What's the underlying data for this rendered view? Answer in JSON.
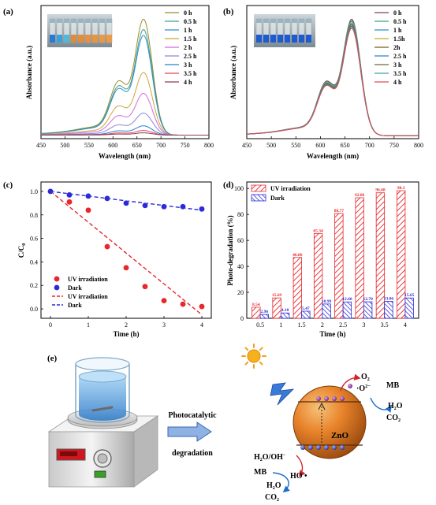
{
  "panels": {
    "a": {
      "label": "(a)"
    },
    "b": {
      "label": "(b)"
    },
    "c": {
      "label": "(c)"
    },
    "d": {
      "label": "(d)"
    },
    "e": {
      "label": "(e)"
    }
  },
  "chart_data": [
    {
      "id": "a",
      "type": "line",
      "xlabel": "Wavelength (nm)",
      "ylabel": "Absorbance (a.u.)",
      "xlim": [
        450,
        800
      ],
      "xticks": [
        "450",
        "500",
        "550",
        "600",
        "650",
        "700",
        "750",
        "800"
      ],
      "legend_position": "top-right",
      "series": [
        {
          "name": "0 h",
          "color": "#a08a2c",
          "peak": 1.0
        },
        {
          "name": "0.5 h",
          "color": "#3aa28c",
          "peak": 0.91
        },
        {
          "name": "1 h",
          "color": "#2f8fcf",
          "peak": 0.86
        },
        {
          "name": "1.5 h",
          "color": "#c9a832",
          "peak": 0.54
        },
        {
          "name": "2 h",
          "color": "#d46ad8",
          "peak": 0.36
        },
        {
          "name": "2.5 h",
          "color": "#8a86d8",
          "peak": 0.19
        },
        {
          "name": "3 h",
          "color": "#2a7fd4",
          "peak": 0.08
        },
        {
          "name": "3.5 h",
          "color": "#e0485c",
          "peak": 0.04
        },
        {
          "name": "4 h",
          "color": "#8e3a4a",
          "peak": 0.02
        }
      ]
    },
    {
      "id": "b",
      "type": "line",
      "xlabel": "Wavelength (nm)",
      "ylabel": "Absorbance (a.u.)",
      "xlim": [
        450,
        800
      ],
      "xticks": [
        "450",
        "500",
        "550",
        "600",
        "650",
        "700",
        "750",
        "800"
      ],
      "legend_position": "top-right",
      "series": [
        {
          "name": "0 h",
          "color": "#8e3a4a",
          "peak": 1.0
        },
        {
          "name": "0.5 h",
          "color": "#3aa28c",
          "peak": 0.99
        },
        {
          "name": "1 h",
          "color": "#2f8fcf",
          "peak": 0.98
        },
        {
          "name": "1.5h",
          "color": "#c9a832",
          "peak": 0.97
        },
        {
          "name": "2h",
          "color": "#7a5a20",
          "peak": 0.96
        },
        {
          "name": "2.5 h",
          "color": "#2a7fd4",
          "peak": 0.95
        },
        {
          "name": "3 h",
          "color": "#6a6a3a",
          "peak": 0.94
        },
        {
          "name": "3.5 h",
          "color": "#3aa8a0",
          "peak": 0.93
        },
        {
          "name": "4 h",
          "color": "#e0485c",
          "peak": 0.92
        }
      ]
    },
    {
      "id": "c",
      "type": "scatter",
      "xlabel": "Time (h)",
      "ylabel": "C/C",
      "ylabel_sub": "0",
      "xlim": [
        -0.25,
        4.25
      ],
      "ylim": [
        -0.08,
        1.08
      ],
      "xticks": [
        "0",
        "1",
        "2",
        "3",
        "4"
      ],
      "yticks": [
        "0.0",
        "0.2",
        "0.4",
        "0.6",
        "0.8",
        "1.0"
      ],
      "legend_position": "bottom-left",
      "series": [
        {
          "name": "UV irradiation",
          "color": "#e8262b",
          "x": [
            0,
            0.5,
            1,
            1.5,
            2,
            2.5,
            3,
            3.5,
            4
          ],
          "y": [
            1.0,
            0.91,
            0.84,
            0.53,
            0.35,
            0.19,
            0.07,
            0.04,
            0.02
          ]
        },
        {
          "name": "Dark",
          "color": "#2a2ad8",
          "x": [
            0,
            0.5,
            1,
            1.5,
            2,
            2.5,
            3,
            3.5,
            4
          ],
          "y": [
            1.0,
            0.97,
            0.96,
            0.94,
            0.9,
            0.88,
            0.87,
            0.87,
            0.85
          ]
        }
      ],
      "fits": [
        {
          "name": "UV irradiation",
          "color": "#e8262b",
          "x": [
            0,
            4
          ],
          "y": [
            1.0,
            -0.05
          ]
        },
        {
          "name": "Dark",
          "color": "#2a2ad8",
          "x": [
            0,
            4
          ],
          "y": [
            1.0,
            0.84
          ]
        }
      ]
    },
    {
      "id": "d",
      "type": "bar",
      "xlabel": "Time (h)",
      "ylabel": "Photo-degradation (%)",
      "ylim": [
        0,
        105
      ],
      "yticks": [
        "0",
        "20",
        "40",
        "60",
        "80",
        "100"
      ],
      "categories": [
        "0.5",
        "1",
        "1.5",
        "2",
        "2.5",
        "3",
        "3.5",
        "4"
      ],
      "legend_position": "top-left",
      "series": [
        {
          "name": "UV irradiation",
          "color": "#e8262b",
          "values": [
            8.54,
            15.69,
            46.86,
            65.34,
            80.77,
            92.86,
            96.68,
            98.3
          ],
          "labels": [
            "8.54",
            "15.69",
            "46.86",
            "65.34",
            "80.77",
            "92.86",
            "96.68",
            "98.3"
          ]
        },
        {
          "name": "Dark",
          "color": "#2a2ad8",
          "values": [
            2.96,
            4.1,
            5.47,
            10.99,
            12.6,
            12.7,
            13.06,
            15.65
          ],
          "labels": [
            "2.96",
            "4.10",
            "5.47",
            "10.99",
            "12.60",
            "12.70",
            "13.06",
            "15.65"
          ]
        }
      ]
    }
  ],
  "scheme": {
    "arrow_label_1": "Photocatalytic",
    "arrow_label_2": "degradation",
    "zno": "ZnO",
    "o2": "O",
    "o2_sub": "2",
    "o2_radical": "·O",
    "o2_radical_sup": "2",
    "mb_top": "MB",
    "h2o_top": "H",
    "co2_top": "CO",
    "h2o_oh": "H",
    "oh_radical": "HO •",
    "mb_bottom": "MB",
    "h2o_bottom": "H",
    "co2_bottom": "CO"
  }
}
